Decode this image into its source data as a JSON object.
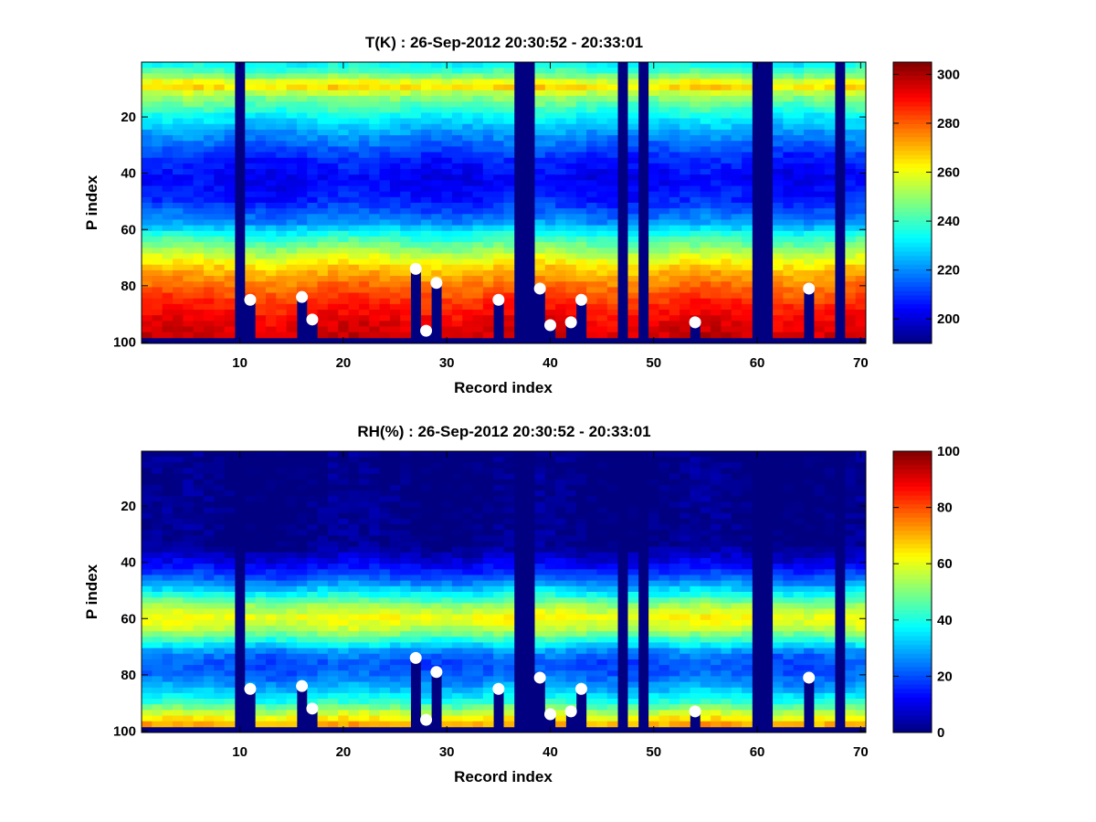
{
  "chart_data": [
    {
      "type": "heatmap",
      "title": "T(K) : 26-Sep-2012 20:30:52 - 20:33:01",
      "xlabel": "Record index",
      "ylabel": "P index",
      "xlim": [
        0.5,
        70.5
      ],
      "ylim": [
        0.5,
        100.5
      ],
      "y_reversed": true,
      "x_ticks": [
        10,
        20,
        30,
        40,
        50,
        60,
        70
      ],
      "y_ticks": [
        20,
        40,
        60,
        80,
        100
      ],
      "colormap": "jet",
      "clim": [
        190,
        305
      ],
      "colorbar_ticks": [
        200,
        220,
        240,
        260,
        280,
        300
      ],
      "profile": {
        "p_index": [
          1,
          5,
          9,
          12,
          20,
          28,
          35,
          42,
          50,
          58,
          62,
          68,
          74,
          80,
          86,
          92,
          98
        ],
        "value": [
          232,
          245,
          268,
          252,
          232,
          218,
          208,
          203,
          208,
          222,
          236,
          252,
          268,
          278,
          286,
          292,
          296
        ]
      },
      "missing_records": [
        10,
        37,
        38,
        47,
        49,
        60,
        61,
        68
      ],
      "bottom_fill_value": 190,
      "surface_points": [
        {
          "record": 11,
          "p_index": 85
        },
        {
          "record": 16,
          "p_index": 84
        },
        {
          "record": 17,
          "p_index": 92
        },
        {
          "record": 27,
          "p_index": 74
        },
        {
          "record": 28,
          "p_index": 96
        },
        {
          "record": 29,
          "p_index": 79
        },
        {
          "record": 35,
          "p_index": 85
        },
        {
          "record": 39,
          "p_index": 81
        },
        {
          "record": 40,
          "p_index": 94
        },
        {
          "record": 42,
          "p_index": 93
        },
        {
          "record": 43,
          "p_index": 85
        },
        {
          "record": 54,
          "p_index": 93
        },
        {
          "record": 65,
          "p_index": 81
        }
      ]
    },
    {
      "type": "heatmap",
      "title": "RH(%) : 26-Sep-2012 20:30:52 - 20:33:01",
      "xlabel": "Record index",
      "ylabel": "P index",
      "xlim": [
        0.5,
        70.5
      ],
      "ylim": [
        0.5,
        100.5
      ],
      "y_reversed": true,
      "x_ticks": [
        10,
        20,
        30,
        40,
        50,
        60,
        70
      ],
      "y_ticks": [
        20,
        40,
        60,
        80,
        100
      ],
      "colormap": "jet",
      "clim": [
        0,
        100
      ],
      "colorbar_ticks": [
        0,
        20,
        40,
        60,
        80,
        100
      ],
      "profile": {
        "p_index": [
          1,
          34,
          40,
          46,
          52,
          56,
          60,
          64,
          68,
          72,
          76,
          80,
          85,
          90,
          94,
          98
        ],
        "value": [
          0,
          1,
          10,
          22,
          40,
          55,
          62,
          55,
          40,
          25,
          20,
          22,
          30,
          42,
          58,
          72
        ]
      },
      "missing_records": [
        10,
        37,
        38,
        47,
        49,
        60,
        61,
        68
      ],
      "bottom_fill_value": 0,
      "surface_points": [
        {
          "record": 11,
          "p_index": 85
        },
        {
          "record": 16,
          "p_index": 84
        },
        {
          "record": 17,
          "p_index": 92
        },
        {
          "record": 27,
          "p_index": 74
        },
        {
          "record": 28,
          "p_index": 96
        },
        {
          "record": 29,
          "p_index": 79
        },
        {
          "record": 35,
          "p_index": 85
        },
        {
          "record": 39,
          "p_index": 81
        },
        {
          "record": 40,
          "p_index": 94
        },
        {
          "record": 42,
          "p_index": 93
        },
        {
          "record": 43,
          "p_index": 85
        },
        {
          "record": 54,
          "p_index": 93
        },
        {
          "record": 65,
          "p_index": 81
        }
      ]
    }
  ]
}
